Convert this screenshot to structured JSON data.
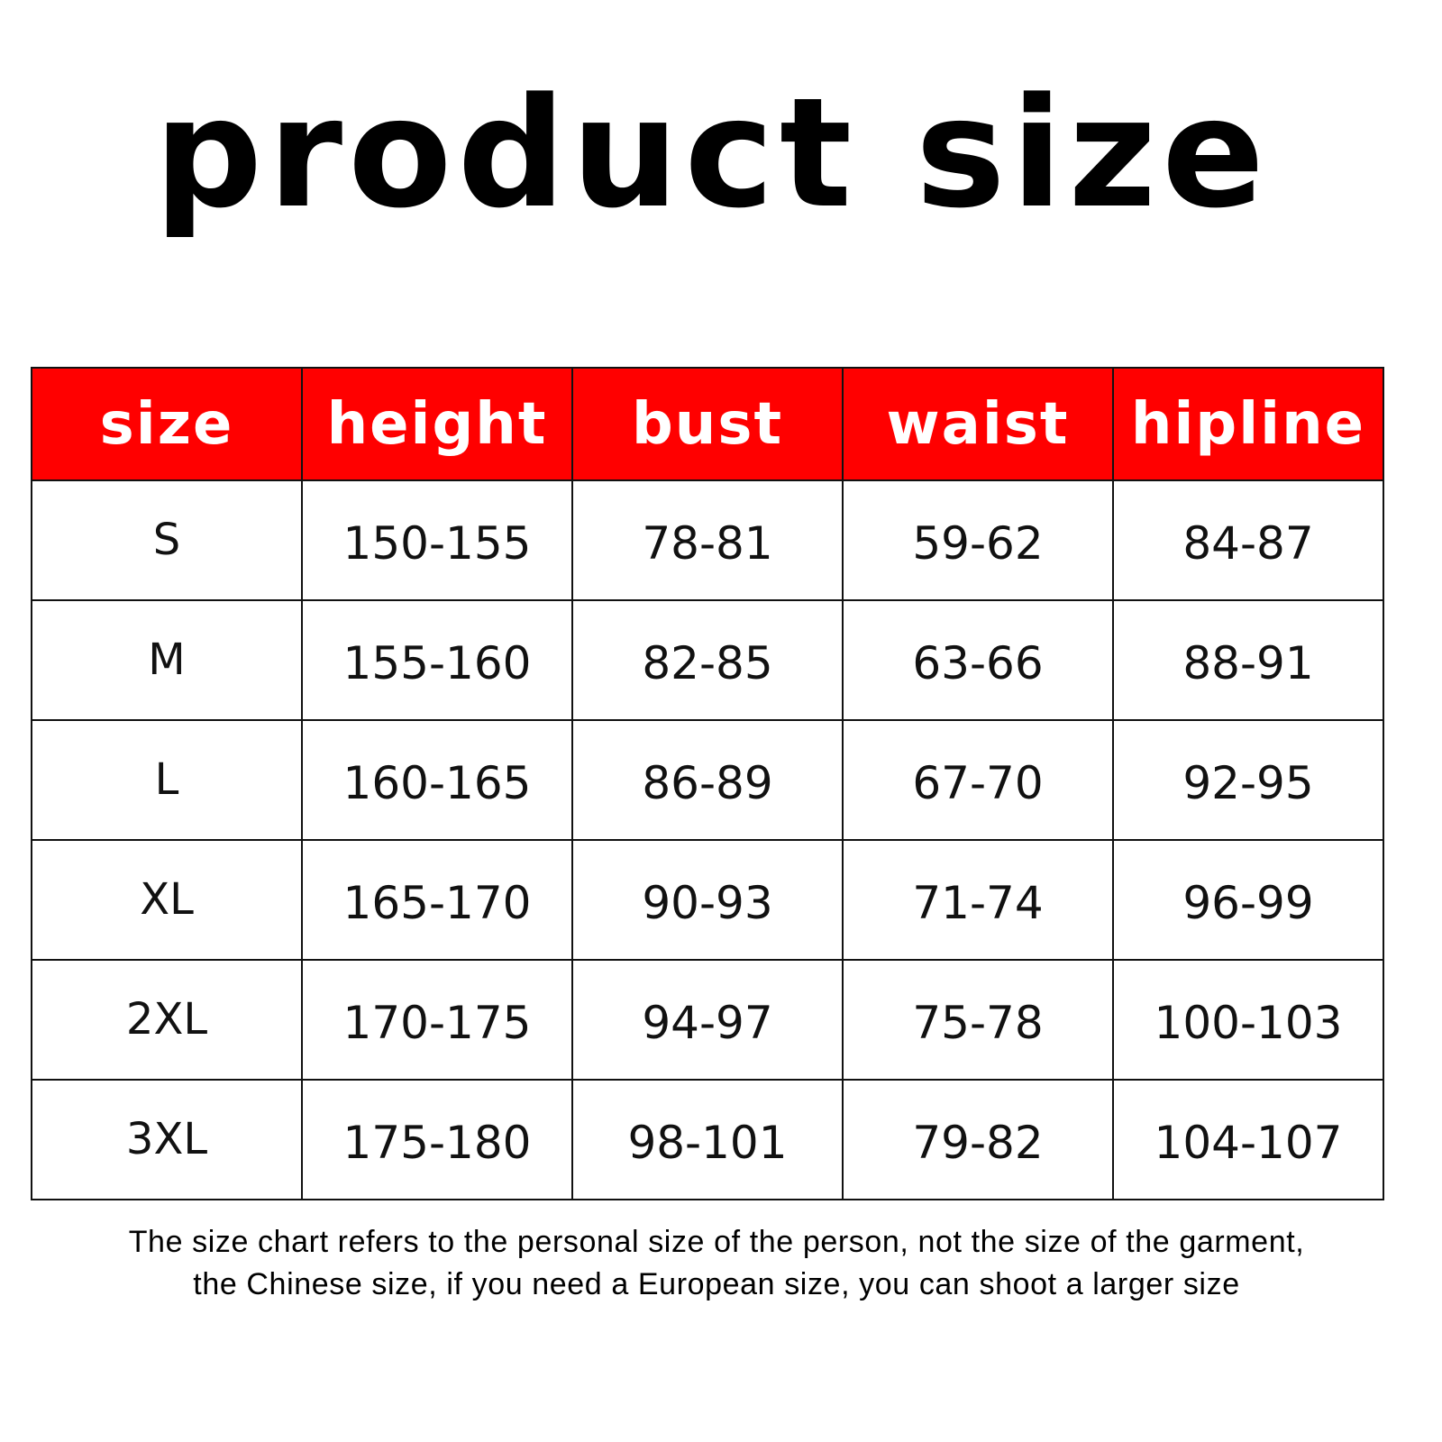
{
  "title": "product size",
  "table": {
    "headers": [
      "size",
      "height",
      "bust",
      "waist",
      "hipline"
    ],
    "header_color": "#ff0000",
    "rows": [
      [
        "S",
        "150-155",
        "78-81",
        "59-62",
        "84-87"
      ],
      [
        "M",
        "155-160",
        "82-85",
        "63-66",
        "88-91"
      ],
      [
        "L",
        "160-165",
        "86-89",
        "67-70",
        "92-95"
      ],
      [
        "XL",
        "165-170",
        "90-93",
        "71-74",
        "96-99"
      ],
      [
        "2XL",
        "170-175",
        "94-97",
        "75-78",
        "100-103"
      ],
      [
        "3XL",
        "175-180",
        "98-101",
        "79-82",
        "104-107"
      ]
    ]
  },
  "footer": {
    "line1": "The size chart refers to the personal size of the person, not the size of the garment,",
    "line2": "the Chinese size, if you need a European size, you can shoot a larger size"
  }
}
